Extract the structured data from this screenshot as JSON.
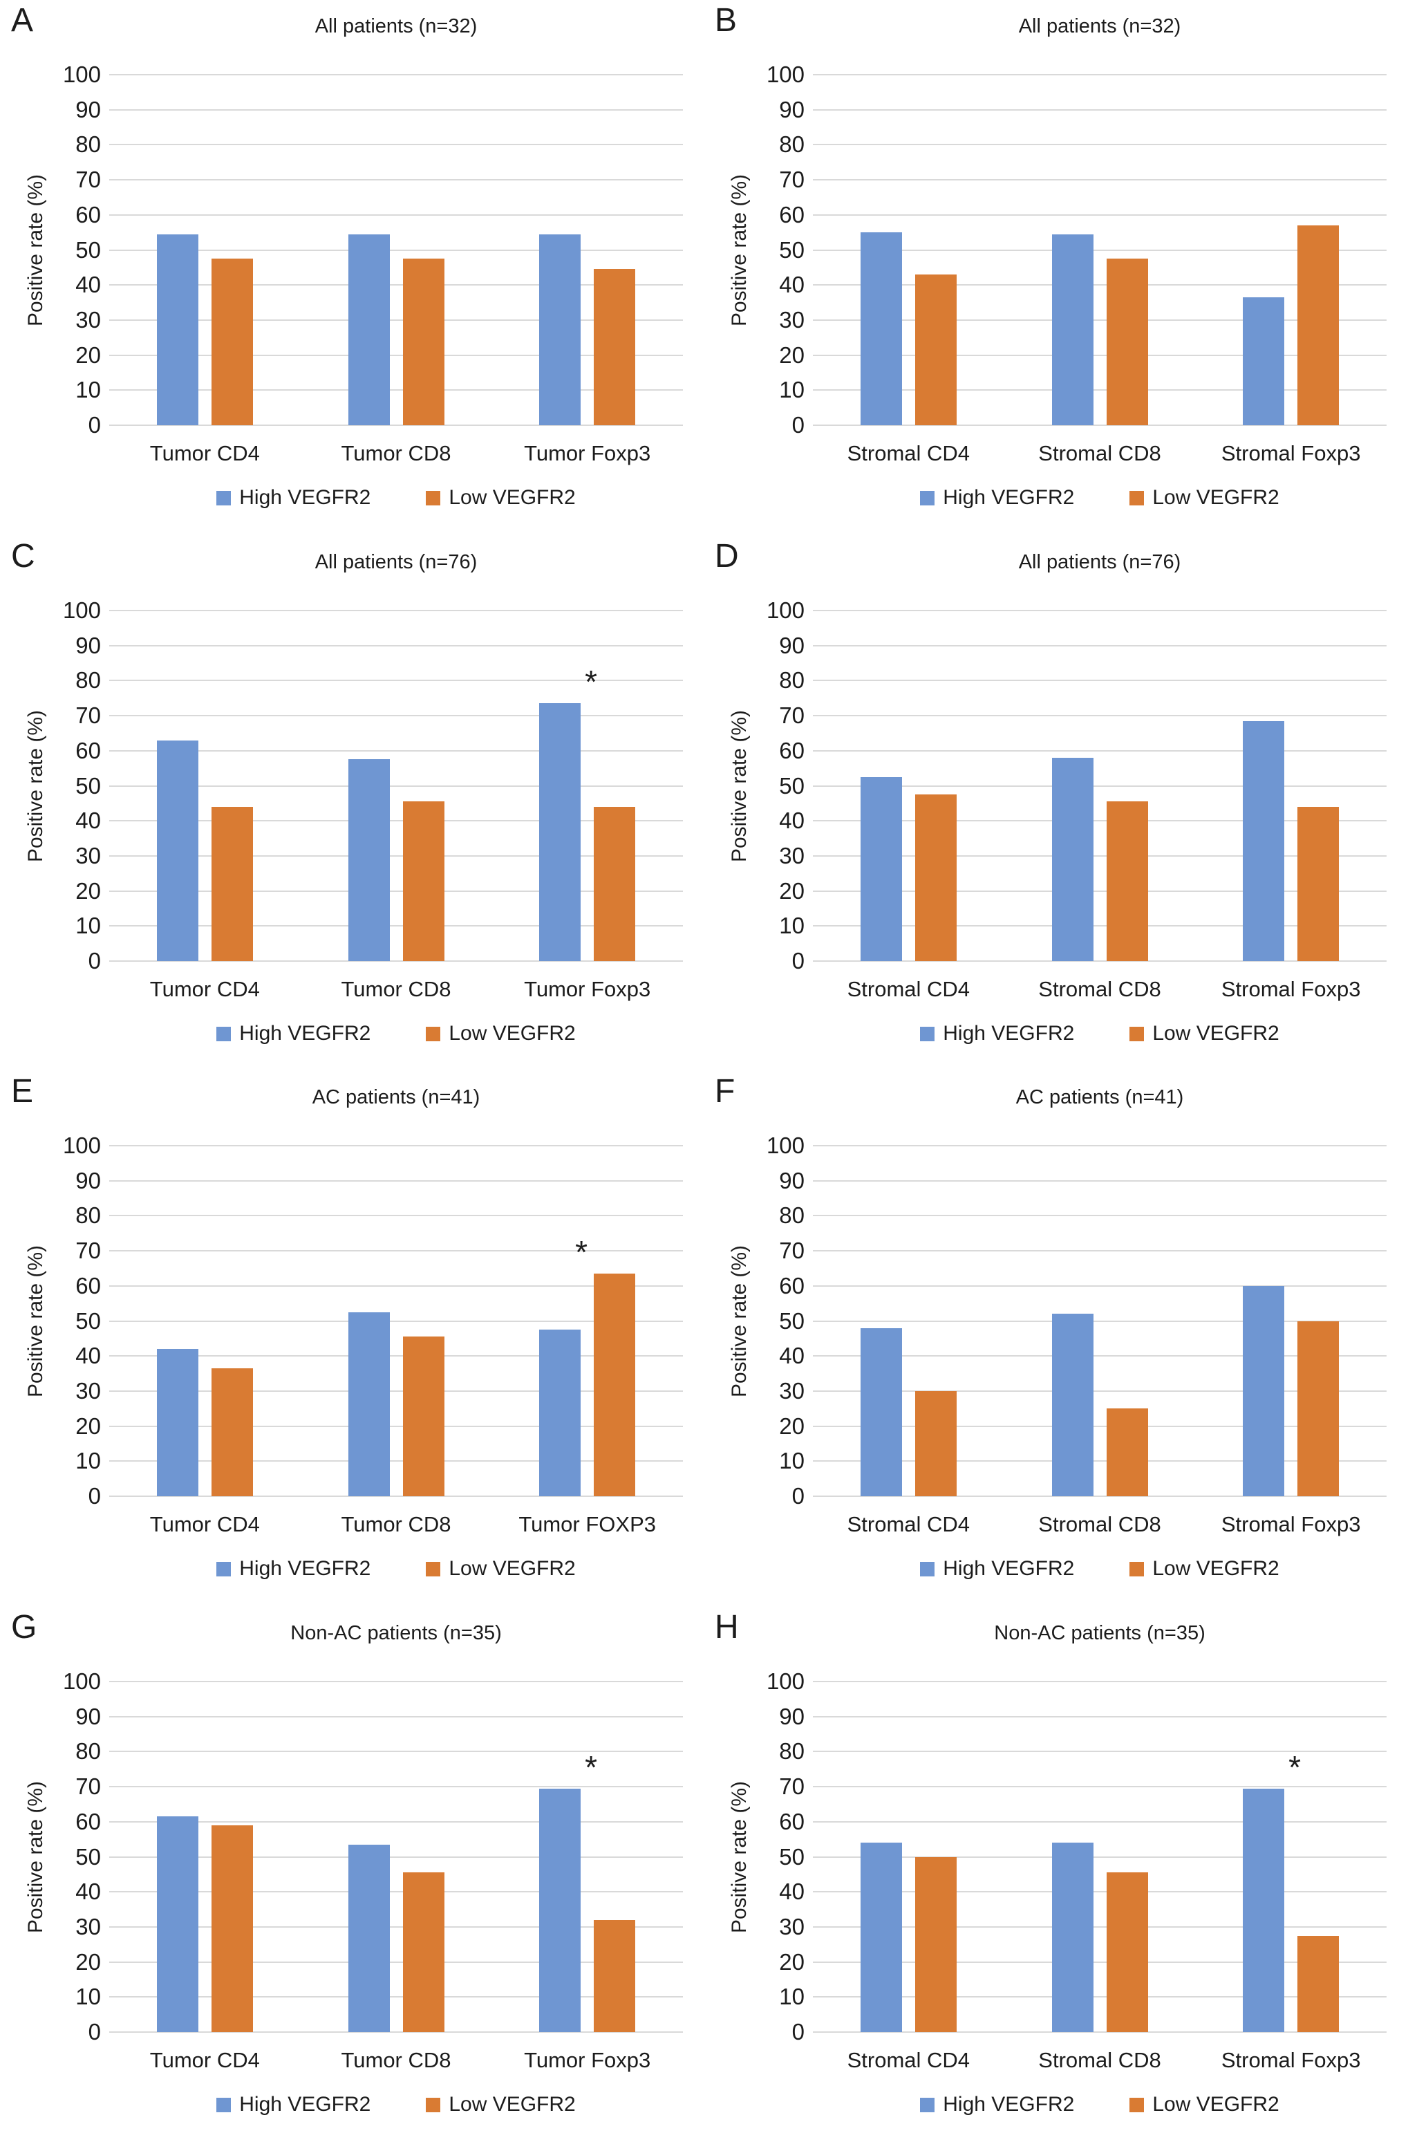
{
  "figure": {
    "ylabel": "Positive rate (%)",
    "legend": [
      "High VEGFR2",
      "Low VEGFR2"
    ],
    "significance_symbol": "*",
    "colors": {
      "high_vegfr2": "#6f96d2",
      "low_vegfr2": "#d97b33",
      "gridline": "#d9d9d9",
      "text": "#1c1c1c",
      "background": "#ffffff"
    },
    "yticks": [
      0,
      10,
      20,
      30,
      40,
      50,
      60,
      70,
      80,
      90,
      100
    ]
  },
  "chart_data": [
    {
      "panel": "A",
      "type": "bar",
      "title": "All patients (n=32)",
      "xlabel": "",
      "ylabel": "Positive rate (%)",
      "ylim": [
        0,
        100
      ],
      "grid": true,
      "legend_position": "bottom",
      "categories": [
        "Tumor CD4",
        "Tumor CD8",
        "Tumor Foxp3"
      ],
      "series": [
        {
          "name": "High VEGFR2",
          "values": [
            54.5,
            54.5,
            54.5
          ]
        },
        {
          "name": "Low VEGFR2",
          "values": [
            47.5,
            47.5,
            44.5
          ]
        }
      ],
      "annotations": []
    },
    {
      "panel": "B",
      "type": "bar",
      "title": "All patients (n=32)",
      "xlabel": "",
      "ylabel": "Positive rate (%)",
      "ylim": [
        0,
        100
      ],
      "grid": true,
      "legend_position": "bottom",
      "categories": [
        "Stromal CD4",
        "Stromal CD8",
        "Stromal Foxp3"
      ],
      "series": [
        {
          "name": "High VEGFR2",
          "values": [
            55,
            54.5,
            36.5
          ]
        },
        {
          "name": "Low VEGFR2",
          "values": [
            43,
            47.5,
            57
          ]
        }
      ],
      "annotations": []
    },
    {
      "panel": "C",
      "type": "bar",
      "title": "All patients (n=76)",
      "xlabel": "",
      "ylabel": "Positive rate (%)",
      "ylim": [
        0,
        100
      ],
      "grid": true,
      "legend_position": "bottom",
      "categories": [
        "Tumor CD4",
        "Tumor CD8",
        "Tumor Foxp3"
      ],
      "series": [
        {
          "name": "High VEGFR2",
          "values": [
            63,
            57.5,
            73.5
          ]
        },
        {
          "name": "Low VEGFR2",
          "values": [
            44,
            45.5,
            44
          ]
        }
      ],
      "annotations": [
        {
          "category_index": 2,
          "series_index": 0,
          "symbol": "*"
        }
      ]
    },
    {
      "panel": "D",
      "type": "bar",
      "title": "All patients (n=76)",
      "xlabel": "",
      "ylabel": "Positive rate (%)",
      "ylim": [
        0,
        100
      ],
      "grid": true,
      "legend_position": "bottom",
      "categories": [
        "Stromal CD4",
        "Stromal CD8",
        "Stromal Foxp3"
      ],
      "series": [
        {
          "name": "High VEGFR2",
          "values": [
            52.5,
            58,
            68.5
          ]
        },
        {
          "name": "Low VEGFR2",
          "values": [
            47.5,
            45.5,
            44
          ]
        }
      ],
      "annotations": []
    },
    {
      "panel": "E",
      "type": "bar",
      "title": "AC patients (n=41)",
      "xlabel": "",
      "ylabel": "Positive rate (%)",
      "ylim": [
        0,
        100
      ],
      "grid": true,
      "legend_position": "bottom",
      "categories": [
        "Tumor CD4",
        "Tumor CD8",
        "Tumor FOXP3"
      ],
      "series": [
        {
          "name": "High VEGFR2",
          "values": [
            42,
            52.5,
            47.5
          ]
        },
        {
          "name": "Low VEGFR2",
          "values": [
            36.5,
            45.5,
            63.5
          ]
        }
      ],
      "annotations": [
        {
          "category_index": 2,
          "series_index": 1,
          "symbol": "*"
        }
      ]
    },
    {
      "panel": "F",
      "type": "bar",
      "title": "AC patients (n=41)",
      "xlabel": "",
      "ylabel": "Positive rate (%)",
      "ylim": [
        0,
        100
      ],
      "grid": true,
      "legend_position": "bottom",
      "categories": [
        "Stromal CD4",
        "Stromal CD8",
        "Stromal Foxp3"
      ],
      "series": [
        {
          "name": "High VEGFR2",
          "values": [
            48,
            52,
            60
          ]
        },
        {
          "name": "Low VEGFR2",
          "values": [
            30,
            25,
            50
          ]
        }
      ],
      "annotations": []
    },
    {
      "panel": "G",
      "type": "bar",
      "title": "Non-AC patients (n=35)",
      "xlabel": "",
      "ylabel": "Positive rate (%)",
      "ylim": [
        0,
        100
      ],
      "grid": true,
      "legend_position": "bottom",
      "categories": [
        "Tumor CD4",
        "Tumor CD8",
        "Tumor Foxp3"
      ],
      "series": [
        {
          "name": "High VEGFR2",
          "values": [
            61.5,
            53.5,
            69.5
          ]
        },
        {
          "name": "Low VEGFR2",
          "values": [
            59,
            45.5,
            32
          ]
        }
      ],
      "annotations": [
        {
          "category_index": 2,
          "series_index": 0,
          "symbol": "*"
        }
      ]
    },
    {
      "panel": "H",
      "type": "bar",
      "title": "Non-AC patients (n=35)",
      "xlabel": "",
      "ylabel": "Positive rate (%)",
      "ylim": [
        0,
        100
      ],
      "grid": true,
      "legend_position": "bottom",
      "categories": [
        "Stromal CD4",
        "Stromal CD8",
        "Stromal Foxp3"
      ],
      "series": [
        {
          "name": "High VEGFR2",
          "values": [
            54,
            54,
            69.5
          ]
        },
        {
          "name": "Low VEGFR2",
          "values": [
            50,
            45.5,
            27.5
          ]
        }
      ],
      "annotations": [
        {
          "category_index": 2,
          "series_index": 0,
          "symbol": "*"
        }
      ]
    }
  ]
}
